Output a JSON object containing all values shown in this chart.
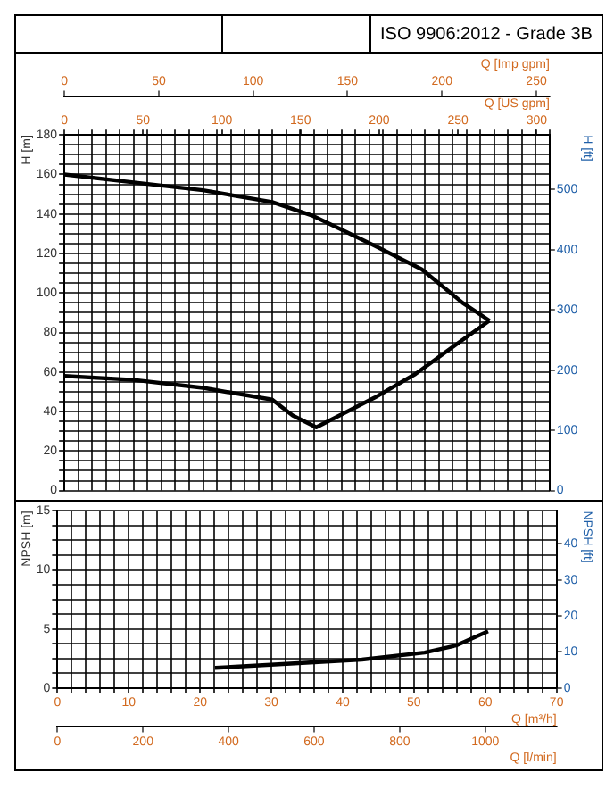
{
  "chart_data": [
    {
      "type": "line",
      "title": "ISO 9906:2012 - Grade 3B",
      "xlabel": "Q [US gpm]",
      "ylabel": "H [m]",
      "y2label": "H [ft]",
      "x2label": "Q [Imp gpm]",
      "grid": true,
      "marker": "none",
      "xlim": [
        0,
        308.2
      ],
      "xticks": [
        0,
        {
          "value": 8.8,
          "label": null
        },
        {
          "value": 17.6,
          "label": null
        },
        {
          "value": 26.4,
          "label": null
        },
        {
          "value": 35.2,
          "label": null
        },
        {
          "value": 44,
          "label": null
        },
        {
          "value": 50,
          "label": "50"
        },
        {
          "value": 52.8,
          "label": null
        },
        {
          "value": 61.6,
          "label": null
        },
        {
          "value": 70.4,
          "label": null
        },
        {
          "value": 79.2,
          "label": null
        },
        {
          "value": 88.1,
          "label": null
        },
        {
          "value": 96.9,
          "label": null
        },
        {
          "value": 100,
          "label": "100"
        },
        {
          "value": 105.7,
          "label": null
        },
        {
          "value": 114.5,
          "label": null
        },
        {
          "value": 123.3,
          "label": null
        },
        {
          "value": 132.1,
          "label": null
        },
        {
          "value": 140.9,
          "label": null
        },
        {
          "value": 149.7,
          "label": null
        },
        {
          "value": 150,
          "label": "150"
        },
        {
          "value": 158.5,
          "label": null
        },
        {
          "value": 167.3,
          "label": null
        },
        {
          "value": 176.1,
          "label": null
        },
        {
          "value": 184.9,
          "label": null
        },
        {
          "value": 193.7,
          "label": null
        },
        {
          "value": 200,
          "label": "200"
        },
        {
          "value": 202.5,
          "label": null
        },
        {
          "value": 211.3,
          "label": null
        },
        {
          "value": 220.2,
          "label": null
        },
        {
          "value": 229,
          "label": null
        },
        {
          "value": 237.8,
          "label": null
        },
        {
          "value": 246.6,
          "label": null
        },
        {
          "value": 250,
          "label": "250"
        },
        {
          "value": 255.4,
          "label": null
        },
        {
          "value": 264.2,
          "label": null
        },
        {
          "value": 273,
          "label": null
        },
        {
          "value": 281.8,
          "label": null
        },
        {
          "value": 290.6,
          "label": null
        },
        {
          "value": 299.4,
          "label": null
        },
        {
          "value": 300,
          "label": "300"
        },
        {
          "value": 308.2,
          "label": null
        }
      ],
      "x2lim": [
        0,
        257
      ],
      "x2ticks": [
        0,
        50,
        100,
        150,
        200,
        250
      ],
      "ylim": [
        0,
        180
      ],
      "yticks": [
        0,
        {
          "value": 5,
          "label": null
        },
        {
          "value": 10,
          "label": null
        },
        {
          "value": 15,
          "label": null
        },
        20,
        {
          "value": 25,
          "label": null
        },
        {
          "value": 30,
          "label": null
        },
        {
          "value": 35,
          "label": null
        },
        40,
        {
          "value": 45,
          "label": null
        },
        {
          "value": 50,
          "label": null
        },
        {
          "value": 55,
          "label": null
        },
        60,
        {
          "value": 65,
          "label": null
        },
        {
          "value": 70,
          "label": null
        },
        {
          "value": 75,
          "label": null
        },
        80,
        {
          "value": 85,
          "label": null
        },
        {
          "value": 90,
          "label": null
        },
        {
          "value": 95,
          "label": null
        },
        100,
        {
          "value": 105,
          "label": null
        },
        {
          "value": 110,
          "label": null
        },
        {
          "value": 115,
          "label": null
        },
        120,
        {
          "value": 125,
          "label": null
        },
        {
          "value": 130,
          "label": null
        },
        {
          "value": 135,
          "label": null
        },
        140,
        {
          "value": 145,
          "label": null
        },
        {
          "value": 150,
          "label": null
        },
        {
          "value": 155,
          "label": null
        },
        160,
        {
          "value": 165,
          "label": null
        },
        {
          "value": 170,
          "label": null
        },
        {
          "value": 175,
          "label": null
        },
        180
      ],
      "y2lim": [
        0,
        590.6
      ],
      "y2ticks": [
        0,
        100,
        200,
        300,
        400,
        500
      ],
      "series": [
        {
          "type": "line",
          "color": "#000000",
          "x": [
            0,
            44,
            88,
            132,
            158,
            197,
            227,
            253,
            270
          ],
          "values": [
            160,
            156,
            152,
            146,
            139,
            124,
            112,
            95,
            86
          ]
        },
        {
          "type": "line",
          "color": "#000000",
          "x": [
            0,
            44,
            88,
            132,
            145,
            160,
            197,
            223,
            249,
            270
          ],
          "values": [
            58,
            56,
            52,
            46,
            38,
            32,
            47,
            59,
            74,
            86
          ]
        }
      ]
    },
    {
      "type": "line",
      "xlabel": "Q [m³/h]",
      "ylabel": "NPSH [m]",
      "y2label": "NPSH [ft]",
      "x2label": "Q [l/min]",
      "grid": true,
      "marker": "none",
      "xlim": [
        0,
        70
      ],
      "xticks": [
        0,
        {
          "value": 2,
          "label": null
        },
        {
          "value": 4,
          "label": null
        },
        {
          "value": 6,
          "label": null
        },
        {
          "value": 8,
          "label": null
        },
        10,
        {
          "value": 12,
          "label": null
        },
        {
          "value": 14,
          "label": null
        },
        {
          "value": 16,
          "label": null
        },
        {
          "value": 18,
          "label": null
        },
        20,
        {
          "value": 22,
          "label": null
        },
        {
          "value": 24,
          "label": null
        },
        {
          "value": 26,
          "label": null
        },
        {
          "value": 28,
          "label": null
        },
        30,
        {
          "value": 32,
          "label": null
        },
        {
          "value": 34,
          "label": null
        },
        {
          "value": 36,
          "label": null
        },
        {
          "value": 38,
          "label": null
        },
        40,
        {
          "value": 42,
          "label": null
        },
        {
          "value": 44,
          "label": null
        },
        {
          "value": 46,
          "label": null
        },
        {
          "value": 48,
          "label": null
        },
        50,
        {
          "value": 52,
          "label": null
        },
        {
          "value": 54,
          "label": null
        },
        {
          "value": 56,
          "label": null
        },
        {
          "value": 58,
          "label": null
        },
        60,
        {
          "value": 62,
          "label": null
        },
        {
          "value": 64,
          "label": null
        },
        {
          "value": 66,
          "label": null
        },
        {
          "value": 68,
          "label": null
        },
        70
      ],
      "x2lim": [
        0,
        1166.7
      ],
      "x2ticks": [
        0,
        200,
        400,
        600,
        800,
        1000
      ],
      "ylim": [
        0,
        15
      ],
      "yticks": [
        0,
        {
          "value": 1.25,
          "label": null
        },
        {
          "value": 2.5,
          "label": null
        },
        {
          "value": 3.75,
          "label": null
        },
        5,
        {
          "value": 6.25,
          "label": null
        },
        {
          "value": 7.5,
          "label": null
        },
        {
          "value": 8.75,
          "label": null
        },
        10,
        {
          "value": 11.25,
          "label": null
        },
        {
          "value": 12.5,
          "label": null
        },
        {
          "value": 13.75,
          "label": null
        },
        15
      ],
      "y2lim": [
        0,
        49.2
      ],
      "y2ticks": [
        0,
        10,
        20,
        30,
        40
      ],
      "series": [
        {
          "type": "line",
          "color": "#000000",
          "x": [
            22.1,
            33.8,
            42.7,
            51.5,
            55.9,
            60.4
          ],
          "values": [
            1.7,
            2.1,
            2.4,
            3,
            3.6,
            4.8
          ]
        }
      ]
    }
  ]
}
